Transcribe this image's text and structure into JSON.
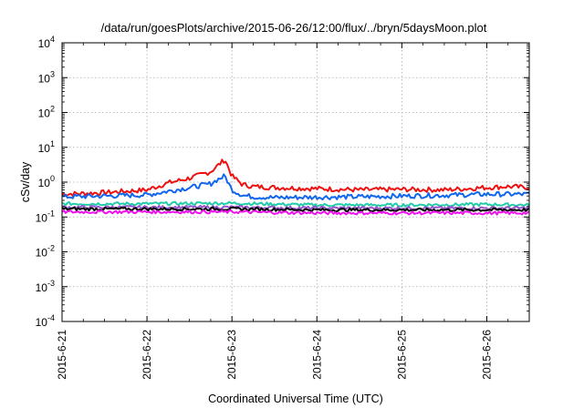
{
  "chart_data": {
    "type": "line",
    "title": "/data/run/goesPlots/archive/2015-06-26/12:00/flux/../bryn/5daysMoon.plot",
    "xlabel": "Coordinated Universal Time (UTC)",
    "ylabel": "cSv/day",
    "yscale": "log",
    "ylim": [
      0.0001,
      10000
    ],
    "xlim": [
      "2015-06-21",
      "2015-06-26 12:00"
    ],
    "grid": true,
    "y_ticks": [
      {
        "base": "10",
        "exp": "-4"
      },
      {
        "base": "10",
        "exp": "-3"
      },
      {
        "base": "10",
        "exp": "-2"
      },
      {
        "base": "10",
        "exp": "-1"
      },
      {
        "base": "10",
        "exp": "0"
      },
      {
        "base": "10",
        "exp": "1"
      },
      {
        "base": "10",
        "exp": "2"
      },
      {
        "base": "10",
        "exp": "3"
      },
      {
        "base": "10",
        "exp": "4"
      }
    ],
    "x_ticks": [
      "2015-6-21",
      "2015-6-22",
      "2015-6-23",
      "2015-6-24",
      "2015-6-25",
      "2015-6-26"
    ],
    "series": [
      {
        "color": "#ee1111",
        "x": [
          "2015-06-21 00:00",
          "2015-06-21 12:00",
          "2015-06-22 00:00",
          "2015-06-22 06:00",
          "2015-06-22 12:00",
          "2015-06-22 18:00",
          "2015-06-22 20:00",
          "2015-06-22 22:00",
          "2015-06-23 00:00",
          "2015-06-23 03:00",
          "2015-06-23 06:00",
          "2015-06-23 12:00",
          "2015-06-24 00:00",
          "2015-06-24 12:00",
          "2015-06-25 00:00",
          "2015-06-25 12:00",
          "2015-06-26 00:00",
          "2015-06-26 06:00",
          "2015-06-26 12:00"
        ],
        "values": [
          0.45,
          0.5,
          0.6,
          0.95,
          1.3,
          2.0,
          3.0,
          4.5,
          1.5,
          0.85,
          0.75,
          0.7,
          0.65,
          0.6,
          0.62,
          0.6,
          0.7,
          0.75,
          0.7
        ]
      },
      {
        "color": "#1166ee",
        "x": [
          "2015-06-21 00:00",
          "2015-06-21 12:00",
          "2015-06-22 00:00",
          "2015-06-22 06:00",
          "2015-06-22 12:00",
          "2015-06-22 18:00",
          "2015-06-22 20:00",
          "2015-06-22 22:00",
          "2015-06-23 00:00",
          "2015-06-23 03:00",
          "2015-06-23 06:00",
          "2015-06-23 12:00",
          "2015-06-24 00:00",
          "2015-06-24 12:00",
          "2015-06-25 00:00",
          "2015-06-25 12:00",
          "2015-06-26 00:00",
          "2015-06-26 06:00",
          "2015-06-26 12:00"
        ],
        "values": [
          0.38,
          0.4,
          0.43,
          0.55,
          0.7,
          0.9,
          1.2,
          1.5,
          0.6,
          0.42,
          0.38,
          0.36,
          0.37,
          0.38,
          0.4,
          0.42,
          0.45,
          0.45,
          0.45
        ]
      },
      {
        "color": "#22ccaa",
        "x": [
          "2015-06-21 00:00",
          "2015-06-22 00:00",
          "2015-06-23 00:00",
          "2015-06-24 00:00",
          "2015-06-25 00:00",
          "2015-06-26 00:00",
          "2015-06-26 12:00"
        ],
        "values": [
          0.24,
          0.24,
          0.25,
          0.22,
          0.22,
          0.23,
          0.22
        ]
      },
      {
        "color": "#9955cc",
        "x": [
          "2015-06-21 00:00",
          "2015-06-22 00:00",
          "2015-06-23 00:00",
          "2015-06-24 00:00",
          "2015-06-25 00:00",
          "2015-06-26 00:00",
          "2015-06-26 12:00"
        ],
        "values": [
          0.19,
          0.19,
          0.19,
          0.18,
          0.18,
          0.18,
          0.18
        ]
      },
      {
        "color": "#000000",
        "x": [
          "2015-06-21 00:00",
          "2015-06-22 00:00",
          "2015-06-23 00:00",
          "2015-06-24 00:00",
          "2015-06-25 00:00",
          "2015-06-26 00:00",
          "2015-06-26 12:00"
        ],
        "values": [
          0.17,
          0.17,
          0.17,
          0.16,
          0.16,
          0.16,
          0.16
        ]
      },
      {
        "color": "#ee11ee",
        "x": [
          "2015-06-21 00:00",
          "2015-06-22 00:00",
          "2015-06-23 00:00",
          "2015-06-24 00:00",
          "2015-06-25 00:00",
          "2015-06-26 00:00",
          "2015-06-26 12:00"
        ],
        "values": [
          0.14,
          0.14,
          0.14,
          0.13,
          0.13,
          0.13,
          0.13
        ]
      }
    ]
  }
}
